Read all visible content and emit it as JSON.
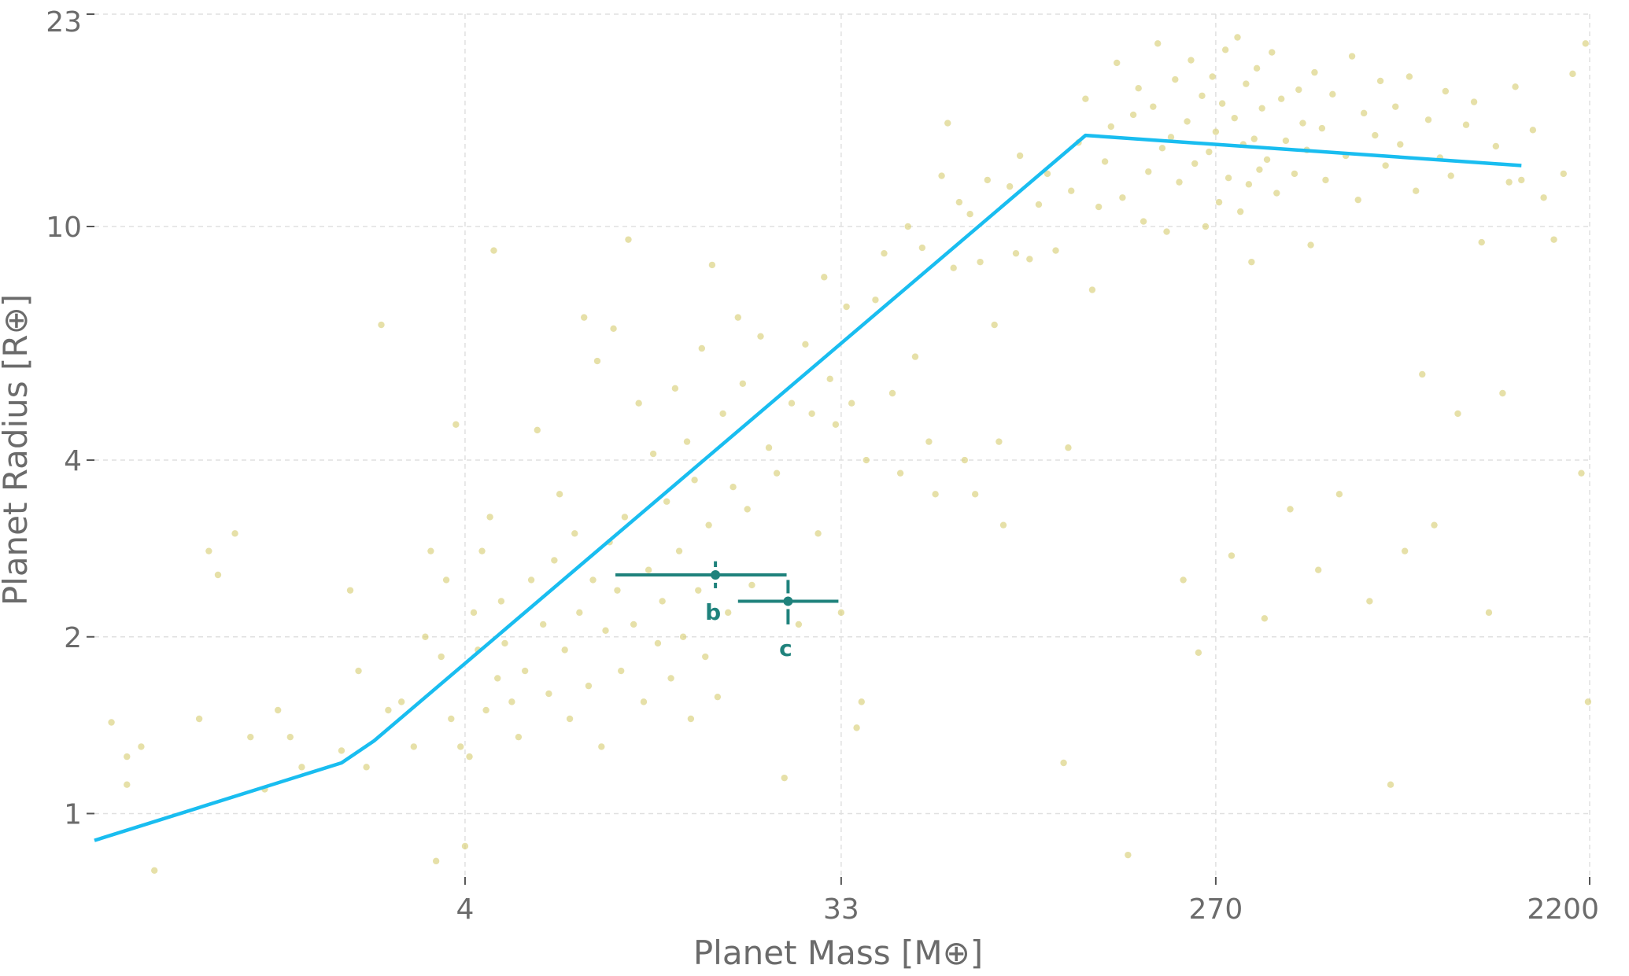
{
  "chart_data": {
    "type": "scatter",
    "xlabel": "Planet Mass [M⊕]",
    "ylabel": "Planet Radius [R⊕]",
    "x_scale": "log",
    "y_scale": "log",
    "xlim": [
      0.5,
      2200
    ],
    "ylim": [
      0.78,
      23
    ],
    "x_ticks": [
      4,
      33,
      270,
      2200
    ],
    "y_ticks": [
      1,
      2,
      4,
      10,
      23
    ],
    "grid": true,
    "colors": {
      "background_points": "#d8d07a",
      "relation_line": "#19bdf0",
      "planets": "#1f827c",
      "grid": "#e0e0e0",
      "text": "#6b6b6b"
    },
    "relation_line": {
      "x": [
        0.5,
        2.0,
        2.4,
        130,
        1500
      ],
      "y": [
        0.9,
        1.22,
        1.33,
        14.3,
        12.7
      ]
    },
    "planets": [
      {
        "label": "b",
        "mass": 16.3,
        "mass_err": [
          7.0,
          8.0
        ],
        "radius": 2.55,
        "radius_err": [
          0.13,
          0.14
        ]
      },
      {
        "label": "c",
        "mass": 24.5,
        "mass_err": [
          6.0,
          8.0
        ],
        "radius": 2.3,
        "radius_err": [
          0.2,
          0.2
        ]
      }
    ],
    "background_points": [
      [
        0.55,
        1.43
      ],
      [
        0.6,
        1.25
      ],
      [
        0.65,
        1.3
      ],
      [
        0.6,
        1.12
      ],
      [
        0.7,
        0.8
      ],
      [
        0.9,
        1.45
      ],
      [
        0.95,
        2.8
      ],
      [
        1.0,
        2.55
      ],
      [
        1.1,
        3.0
      ],
      [
        1.2,
        1.35
      ],
      [
        1.3,
        1.1
      ],
      [
        1.4,
        1.5
      ],
      [
        1.5,
        1.35
      ],
      [
        1.6,
        1.2
      ],
      [
        2.0,
        1.28
      ],
      [
        2.1,
        2.4
      ],
      [
        2.2,
        1.75
      ],
      [
        2.3,
        1.2
      ],
      [
        2.5,
        6.8
      ],
      [
        2.6,
        1.5
      ],
      [
        2.8,
        1.55
      ],
      [
        3.0,
        1.3
      ],
      [
        3.2,
        2.0
      ],
      [
        3.3,
        2.8
      ],
      [
        3.4,
        0.83
      ],
      [
        3.5,
        1.85
      ],
      [
        3.6,
        2.5
      ],
      [
        3.7,
        1.45
      ],
      [
        3.8,
        4.6
      ],
      [
        3.9,
        1.3
      ],
      [
        4.0,
        0.88
      ],
      [
        4.1,
        1.25
      ],
      [
        4.2,
        2.2
      ],
      [
        4.3,
        1.9
      ],
      [
        4.4,
        2.8
      ],
      [
        4.5,
        1.5
      ],
      [
        4.6,
        3.2
      ],
      [
        4.7,
        9.1
      ],
      [
        4.8,
        1.7
      ],
      [
        4.9,
        2.3
      ],
      [
        5.0,
        1.95
      ],
      [
        5.2,
        1.55
      ],
      [
        5.4,
        1.35
      ],
      [
        5.6,
        1.75
      ],
      [
        5.8,
        2.5
      ],
      [
        6.0,
        4.5
      ],
      [
        6.2,
        2.1
      ],
      [
        6.4,
        1.6
      ],
      [
        6.6,
        2.7
      ],
      [
        6.8,
        3.5
      ],
      [
        7.0,
        1.9
      ],
      [
        7.2,
        1.45
      ],
      [
        7.4,
        3.0
      ],
      [
        7.6,
        2.2
      ],
      [
        7.8,
        7.0
      ],
      [
        8.0,
        1.65
      ],
      [
        8.2,
        2.5
      ],
      [
        8.4,
        5.9
      ],
      [
        8.6,
        1.3
      ],
      [
        8.8,
        2.05
      ],
      [
        9.0,
        2.9
      ],
      [
        9.2,
        6.7
      ],
      [
        9.4,
        2.4
      ],
      [
        9.6,
        1.75
      ],
      [
        9.8,
        3.2
      ],
      [
        10.0,
        9.5
      ],
      [
        10.3,
        2.1
      ],
      [
        10.6,
        5.0
      ],
      [
        10.9,
        1.55
      ],
      [
        11.2,
        2.6
      ],
      [
        11.5,
        4.1
      ],
      [
        11.8,
        1.95
      ],
      [
        12.1,
        2.3
      ],
      [
        12.4,
        3.4
      ],
      [
        12.7,
        1.7
      ],
      [
        13.0,
        5.3
      ],
      [
        13.3,
        2.8
      ],
      [
        13.6,
        2.0
      ],
      [
        13.9,
        4.3
      ],
      [
        14.2,
        1.45
      ],
      [
        14.5,
        3.7
      ],
      [
        14.8,
        2.4
      ],
      [
        15.1,
        6.2
      ],
      [
        15.4,
        1.85
      ],
      [
        15.7,
        3.1
      ],
      [
        16.0,
        8.6
      ],
      [
        16.5,
        1.58
      ],
      [
        17.0,
        4.8
      ],
      [
        17.5,
        2.2
      ],
      [
        18.0,
        3.6
      ],
      [
        18.5,
        7.0
      ],
      [
        19.0,
        5.4
      ],
      [
        19.5,
        3.3
      ],
      [
        20.0,
        2.45
      ],
      [
        21.0,
        6.5
      ],
      [
        22.0,
        4.2
      ],
      [
        23.0,
        3.8
      ],
      [
        24.0,
        1.15
      ],
      [
        25.0,
        5.0
      ],
      [
        26.0,
        2.1
      ],
      [
        27.0,
        6.3
      ],
      [
        28.0,
        4.8
      ],
      [
        29.0,
        3.0
      ],
      [
        30.0,
        8.2
      ],
      [
        31.0,
        5.5
      ],
      [
        32.0,
        4.6
      ],
      [
        33.0,
        2.2
      ],
      [
        34.0,
        7.3
      ],
      [
        35.0,
        5.0
      ],
      [
        36.0,
        1.4
      ],
      [
        37.0,
        1.55
      ],
      [
        38.0,
        4.0
      ],
      [
        40.0,
        7.5
      ],
      [
        42.0,
        9.0
      ],
      [
        44.0,
        5.2
      ],
      [
        46.0,
        3.8
      ],
      [
        48.0,
        10.0
      ],
      [
        50.0,
        6.0
      ],
      [
        52.0,
        9.2
      ],
      [
        54.0,
        4.3
      ],
      [
        56.0,
        3.5
      ],
      [
        58.0,
        12.2
      ],
      [
        60.0,
        15.0
      ],
      [
        62.0,
        8.5
      ],
      [
        64.0,
        11.0
      ],
      [
        66.0,
        4.0
      ],
      [
        68.0,
        10.5
      ],
      [
        70.0,
        3.5
      ],
      [
        72.0,
        8.7
      ],
      [
        75.0,
        12.0
      ],
      [
        78.0,
        6.8
      ],
      [
        80.0,
        4.3
      ],
      [
        82.0,
        3.1
      ],
      [
        85.0,
        11.7
      ],
      [
        88.0,
        9.0
      ],
      [
        90.0,
        13.2
      ],
      [
        95.0,
        8.8
      ],
      [
        100.0,
        10.9
      ],
      [
        105.0,
        12.3
      ],
      [
        110.0,
        9.1
      ],
      [
        115.0,
        1.22
      ],
      [
        118.0,
        4.2
      ],
      [
        120.0,
        11.5
      ],
      [
        125.0,
        13.9
      ],
      [
        130.0,
        16.5
      ],
      [
        135.0,
        7.8
      ],
      [
        140.0,
        10.8
      ],
      [
        145.0,
        12.9
      ],
      [
        150.0,
        14.8
      ],
      [
        155.0,
        19.0
      ],
      [
        160.0,
        11.2
      ],
      [
        165.0,
        0.85
      ],
      [
        170.0,
        15.5
      ],
      [
        175.0,
        17.2
      ],
      [
        180.0,
        10.2
      ],
      [
        185.0,
        12.4
      ],
      [
        190.0,
        16.0
      ],
      [
        195.0,
        20.5
      ],
      [
        200.0,
        13.6
      ],
      [
        205.0,
        9.8
      ],
      [
        210.0,
        14.2
      ],
      [
        215.0,
        17.8
      ],
      [
        220.0,
        11.9
      ],
      [
        225.0,
        2.5
      ],
      [
        230.0,
        15.1
      ],
      [
        235.0,
        19.2
      ],
      [
        240.0,
        12.8
      ],
      [
        245.0,
        1.88
      ],
      [
        250.0,
        16.7
      ],
      [
        255.0,
        10.0
      ],
      [
        260.0,
        13.4
      ],
      [
        265.0,
        18.0
      ],
      [
        270.0,
        14.5
      ],
      [
        275.0,
        11.0
      ],
      [
        280.0,
        16.2
      ],
      [
        285.0,
        20.0
      ],
      [
        290.0,
        12.1
      ],
      [
        295.0,
        2.75
      ],
      [
        300.0,
        15.3
      ],
      [
        305.0,
        21.0
      ],
      [
        310.0,
        10.6
      ],
      [
        315.0,
        13.8
      ],
      [
        320.0,
        17.5
      ],
      [
        325.0,
        11.8
      ],
      [
        330.0,
        8.7
      ],
      [
        335.0,
        14.1
      ],
      [
        340.0,
        18.6
      ],
      [
        345.0,
        12.5
      ],
      [
        350.0,
        15.9
      ],
      [
        355.0,
        2.15
      ],
      [
        360.0,
        13.0
      ],
      [
        370.0,
        19.8
      ],
      [
        380.0,
        11.4
      ],
      [
        390.0,
        16.5
      ],
      [
        400.0,
        14.0
      ],
      [
        410.0,
        3.3
      ],
      [
        420.0,
        12.3
      ],
      [
        430.0,
        17.1
      ],
      [
        440.0,
        15.0
      ],
      [
        450.0,
        13.5
      ],
      [
        460.0,
        9.3
      ],
      [
        470.0,
        18.3
      ],
      [
        480.0,
        2.6
      ],
      [
        490.0,
        14.7
      ],
      [
        500.0,
        12.0
      ],
      [
        520.0,
        16.8
      ],
      [
        540.0,
        3.5
      ],
      [
        560.0,
        13.2
      ],
      [
        580.0,
        19.5
      ],
      [
        600.0,
        11.1
      ],
      [
        620.0,
        15.6
      ],
      [
        640.0,
        2.3
      ],
      [
        660.0,
        14.3
      ],
      [
        680.0,
        17.7
      ],
      [
        700.0,
        12.7
      ],
      [
        720.0,
        1.12
      ],
      [
        740.0,
        16.0
      ],
      [
        760.0,
        13.8
      ],
      [
        780.0,
        2.8
      ],
      [
        800.0,
        18.0
      ],
      [
        830.0,
        11.5
      ],
      [
        860.0,
        5.6
      ],
      [
        890.0,
        15.2
      ],
      [
        920.0,
        3.1
      ],
      [
        950.0,
        13.1
      ],
      [
        980.0,
        17.0
      ],
      [
        1010.0,
        12.2
      ],
      [
        1050.0,
        4.8
      ],
      [
        1100.0,
        14.9
      ],
      [
        1150.0,
        16.3
      ],
      [
        1200.0,
        9.4
      ],
      [
        1250.0,
        2.2
      ],
      [
        1300.0,
        13.7
      ],
      [
        1350.0,
        5.2
      ],
      [
        1400.0,
        11.9
      ],
      [
        1450.0,
        17.3
      ],
      [
        1500.0,
        12.0
      ],
      [
        1600.0,
        14.6
      ],
      [
        1700.0,
        11.2
      ],
      [
        1800.0,
        9.5
      ],
      [
        1900.0,
        12.3
      ],
      [
        2000.0,
        18.2
      ],
      [
        2100.0,
        3.8
      ],
      [
        2150.0,
        20.5
      ],
      [
        2180.0,
        1.55
      ]
    ]
  }
}
